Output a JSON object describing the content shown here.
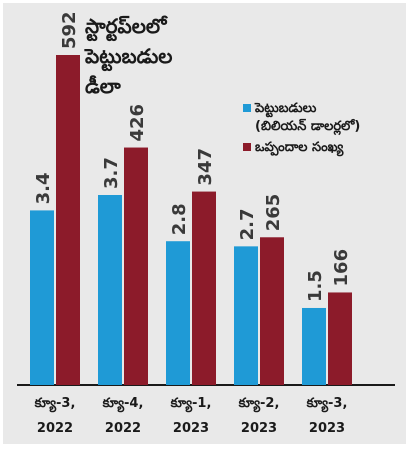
{
  "title_lines": [
    "స్టార్టప్‌లలో",
    "పెట్టుబడుల",
    "డీలా"
  ],
  "legend": [
    {
      "lines": [
        "పెట్టుబడులు",
        "(బిలియన్‌ డాలర్లలో)"
      ],
      "color": "#1f9ad6"
    },
    {
      "lines": [
        "ఒప్పందాల సంఖ్య"
      ],
      "color": "#8c1b2a"
    }
  ],
  "chart_data": {
    "type": "bar",
    "categories": [
      [
        "క్యూ-3,",
        "2022"
      ],
      [
        "క్యూ-4,",
        "2022"
      ],
      [
        "క్యూ-1,",
        "2023"
      ],
      [
        "క్యూ-2,",
        "2023"
      ],
      [
        "క్యూ-3,",
        "2023"
      ]
    ],
    "series": [
      {
        "name": "పెట్టుబడులు (బిలియన్‌ డాలర్లలో)",
        "values": [
          3.4,
          3.7,
          2.8,
          2.7,
          1.5
        ],
        "labels": [
          "3.4",
          "3.7",
          "2.8",
          "2.7",
          "1.5"
        ],
        "color": "#1f9ad6"
      },
      {
        "name": "ఒప్పందాల సంఖ్య",
        "values": [
          592,
          426,
          347,
          265,
          166
        ],
        "labels": [
          "592",
          "426",
          "347",
          "265",
          "166"
        ],
        "color": "#8c1b2a"
      }
    ],
    "value_label_color": "#3a3a3a",
    "grid": false
  }
}
